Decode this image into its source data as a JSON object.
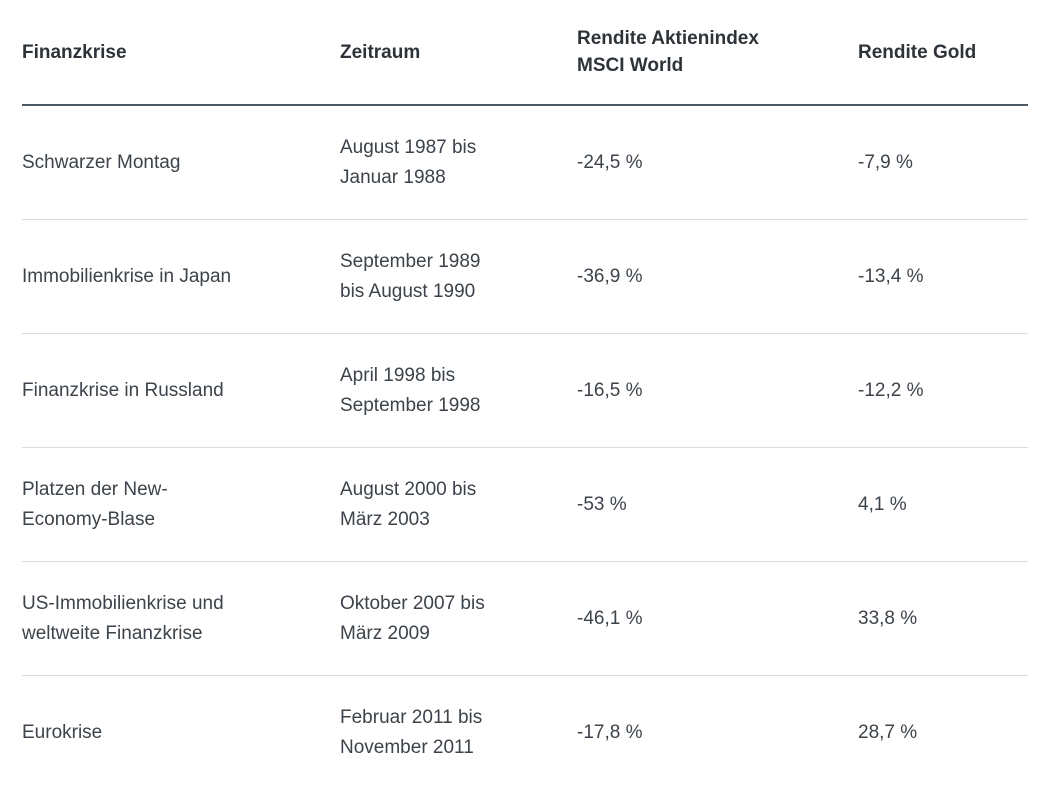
{
  "table": {
    "columns": [
      {
        "label": "Finanzkrise"
      },
      {
        "label": "Zeitraum"
      },
      {
        "label": "Rendite Aktienindex\nMSCI World"
      },
      {
        "label": "Rendite Gold"
      }
    ],
    "rows": [
      {
        "finanzkrise": "Schwarzer Montag",
        "zeitraum": "August 1987 bis\nJanuar 1988",
        "rendite_msci_world": "-24,5 %",
        "rendite_gold": "-7,9 %"
      },
      {
        "finanzkrise": "Immobilienkrise in Japan",
        "zeitraum": "September 1989\nbis August 1990",
        "rendite_msci_world": "-36,9 %",
        "rendite_gold": "-13,4 %"
      },
      {
        "finanzkrise": "Finanzkrise in Russland",
        "zeitraum": "April 1998 bis\nSeptember 1998",
        "rendite_msci_world": "-16,5 %",
        "rendite_gold": "-12,2 %"
      },
      {
        "finanzkrise": "Platzen der New-\nEconomy-Blase",
        "zeitraum": "August 2000 bis\nMärz 2003",
        "rendite_msci_world": "-53 %",
        "rendite_gold": "4,1 %"
      },
      {
        "finanzkrise": "US-Immobilienkrise und\nweltweite Finanzkrise",
        "zeitraum": "Oktober 2007 bis\nMärz 2009",
        "rendite_msci_world": "-46,1 %",
        "rendite_gold": "33,8 %"
      },
      {
        "finanzkrise": "Eurokrise",
        "zeitraum": "Februar 2011 bis\nNovember 2011",
        "rendite_msci_world": "-17,8 %",
        "rendite_gold": "28,7 %"
      }
    ]
  },
  "colors": {
    "header_border": "#4e5b64",
    "row_border": "#dcdcdc",
    "header_text": "#2d3338",
    "body_text": "#3c434a",
    "background": "#ffffff"
  },
  "chart_data": {
    "type": "table",
    "title": "",
    "columns": [
      "Finanzkrise",
      "Zeitraum",
      "Rendite Aktienindex MSCI World",
      "Rendite Gold"
    ],
    "rows": [
      [
        "Schwarzer Montag",
        "August 1987 bis Januar 1988",
        -24.5,
        -7.9
      ],
      [
        "Immobilienkrise in Japan",
        "September 1989 bis August 1990",
        -36.9,
        -13.4
      ],
      [
        "Finanzkrise in Russland",
        "April 1998 bis September 1998",
        -16.5,
        -12.2
      ],
      [
        "Platzen der New-Economy-Blase",
        "August 2000 bis März 2003",
        -53,
        4.1
      ],
      [
        "US-Immobilienkrise und weltweite Finanzkrise",
        "Oktober 2007 bis März 2009",
        -46.1,
        33.8
      ],
      [
        "Eurokrise",
        "Februar 2011 bis November 2011",
        -17.8,
        28.7
      ]
    ],
    "value_unit": "%"
  }
}
